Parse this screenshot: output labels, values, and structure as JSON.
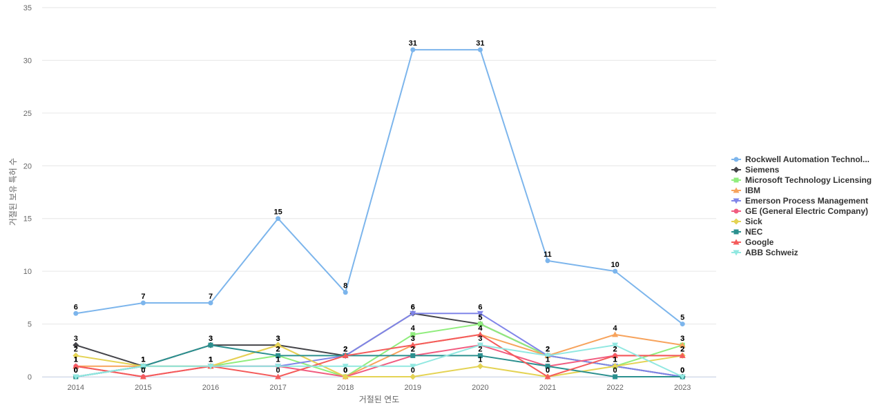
{
  "chart_data": {
    "type": "line",
    "title": "",
    "xlabel": "거절된 연도",
    "ylabel": "거절된 보유 특허 수",
    "ylim": [
      0,
      35
    ],
    "yticks": [
      0,
      5,
      10,
      15,
      20,
      25,
      30,
      35
    ],
    "grid": true,
    "legend_position": "right",
    "categories": [
      "2014",
      "2015",
      "2016",
      "2017",
      "2018",
      "2019",
      "2020",
      "2021",
      "2022",
      "2023"
    ],
    "series": [
      {
        "name": "Rockwell Automation Technol...",
        "color": "#7cb5ec",
        "marker": "circle",
        "values": [
          6,
          7,
          7,
          15,
          8,
          31,
          31,
          11,
          10,
          5
        ],
        "labels": true
      },
      {
        "name": "Siemens",
        "color": "#434348",
        "marker": "diamond",
        "values": [
          3,
          1,
          3,
          3,
          2,
          6,
          5,
          2,
          1,
          0
        ],
        "labels": true
      },
      {
        "name": "Microsoft Technology Licensing",
        "color": "#90ed7d",
        "marker": "square",
        "values": [
          0,
          1,
          1,
          2,
          0,
          4,
          5,
          2,
          1,
          3
        ],
        "labels": true
      },
      {
        "name": "IBM",
        "color": "#f7a35c",
        "marker": "triangle",
        "values": [
          1,
          1,
          1,
          3,
          0,
          3,
          4,
          2,
          4,
          3
        ],
        "labels": true
      },
      {
        "name": "Emerson Process Management",
        "color": "#8085e9",
        "marker": "triangle-down",
        "values": [
          0,
          1,
          1,
          1,
          2,
          6,
          6,
          2,
          1,
          0
        ],
        "labels": true
      },
      {
        "name": "GE (General Electric Company)",
        "color": "#f15c80",
        "marker": "circle",
        "values": [
          1,
          0,
          1,
          1,
          0,
          2,
          3,
          1,
          2,
          2
        ],
        "labels": true
      },
      {
        "name": "Sick",
        "color": "#e4d354",
        "marker": "diamond",
        "values": [
          2,
          1,
          1,
          3,
          0,
          0,
          1,
          0,
          1,
          2
        ],
        "labels": true
      },
      {
        "name": "NEC",
        "color": "#2b908f",
        "marker": "square",
        "values": [
          0,
          1,
          3,
          2,
          2,
          2,
          2,
          1,
          0,
          0
        ],
        "labels": true
      },
      {
        "name": "Google",
        "color": "#f45b5b",
        "marker": "triangle",
        "values": [
          1,
          0,
          1,
          0,
          2,
          3,
          4,
          0,
          2,
          2
        ],
        "labels": true
      },
      {
        "name": "ABB Schweiz",
        "color": "#91e8e1",
        "marker": "triangle-down",
        "values": [
          0,
          1,
          1,
          1,
          1,
          1,
          3,
          2,
          3,
          0
        ],
        "labels": false
      }
    ]
  }
}
